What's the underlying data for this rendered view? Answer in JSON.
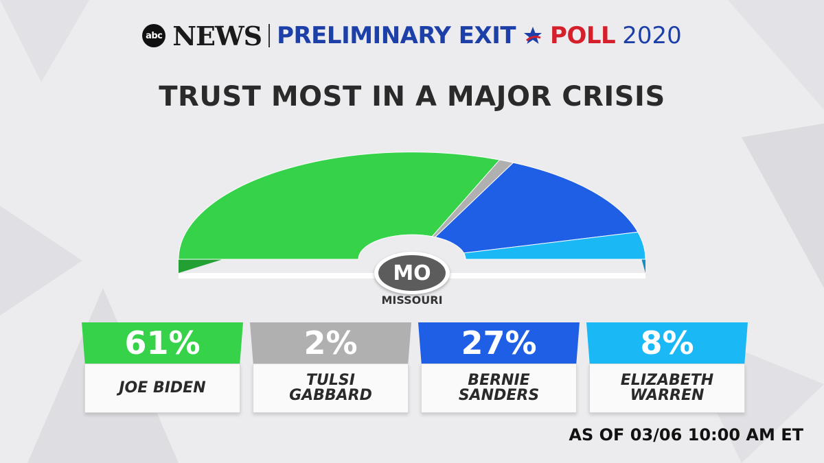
{
  "header": {
    "logo_text": "abc",
    "news": "NEWS",
    "preliminary": "PRELIMINARY EXIT",
    "poll": "POLL",
    "year": "2020"
  },
  "title": "TRUST MOST IN A MAJOR CRISIS",
  "state": {
    "code": "MO",
    "name": "MISSOURI"
  },
  "timestamp": "AS OF 03/06 10:00 AM ET",
  "colors": {
    "biden": "#35d24a",
    "gabbard": "#b0b0b0",
    "sanders": "#1f5fe6",
    "warren": "#1ab8f5"
  },
  "chart_data": {
    "type": "pie",
    "title": "TRUST MOST IN A MAJOR CRISIS",
    "categories": [
      "JOE BIDEN",
      "TULSI GABBARD",
      "BERNIE SANDERS",
      "ELIZABETH WARREN"
    ],
    "values": [
      61,
      2,
      27,
      8
    ],
    "labels": [
      "61%",
      "2%",
      "27%",
      "8%"
    ],
    "display_names": [
      "JOE BIDEN",
      "TULSI\nGABBARD",
      "BERNIE\nSANDERS",
      "ELIZABETH\nWARREN"
    ]
  }
}
